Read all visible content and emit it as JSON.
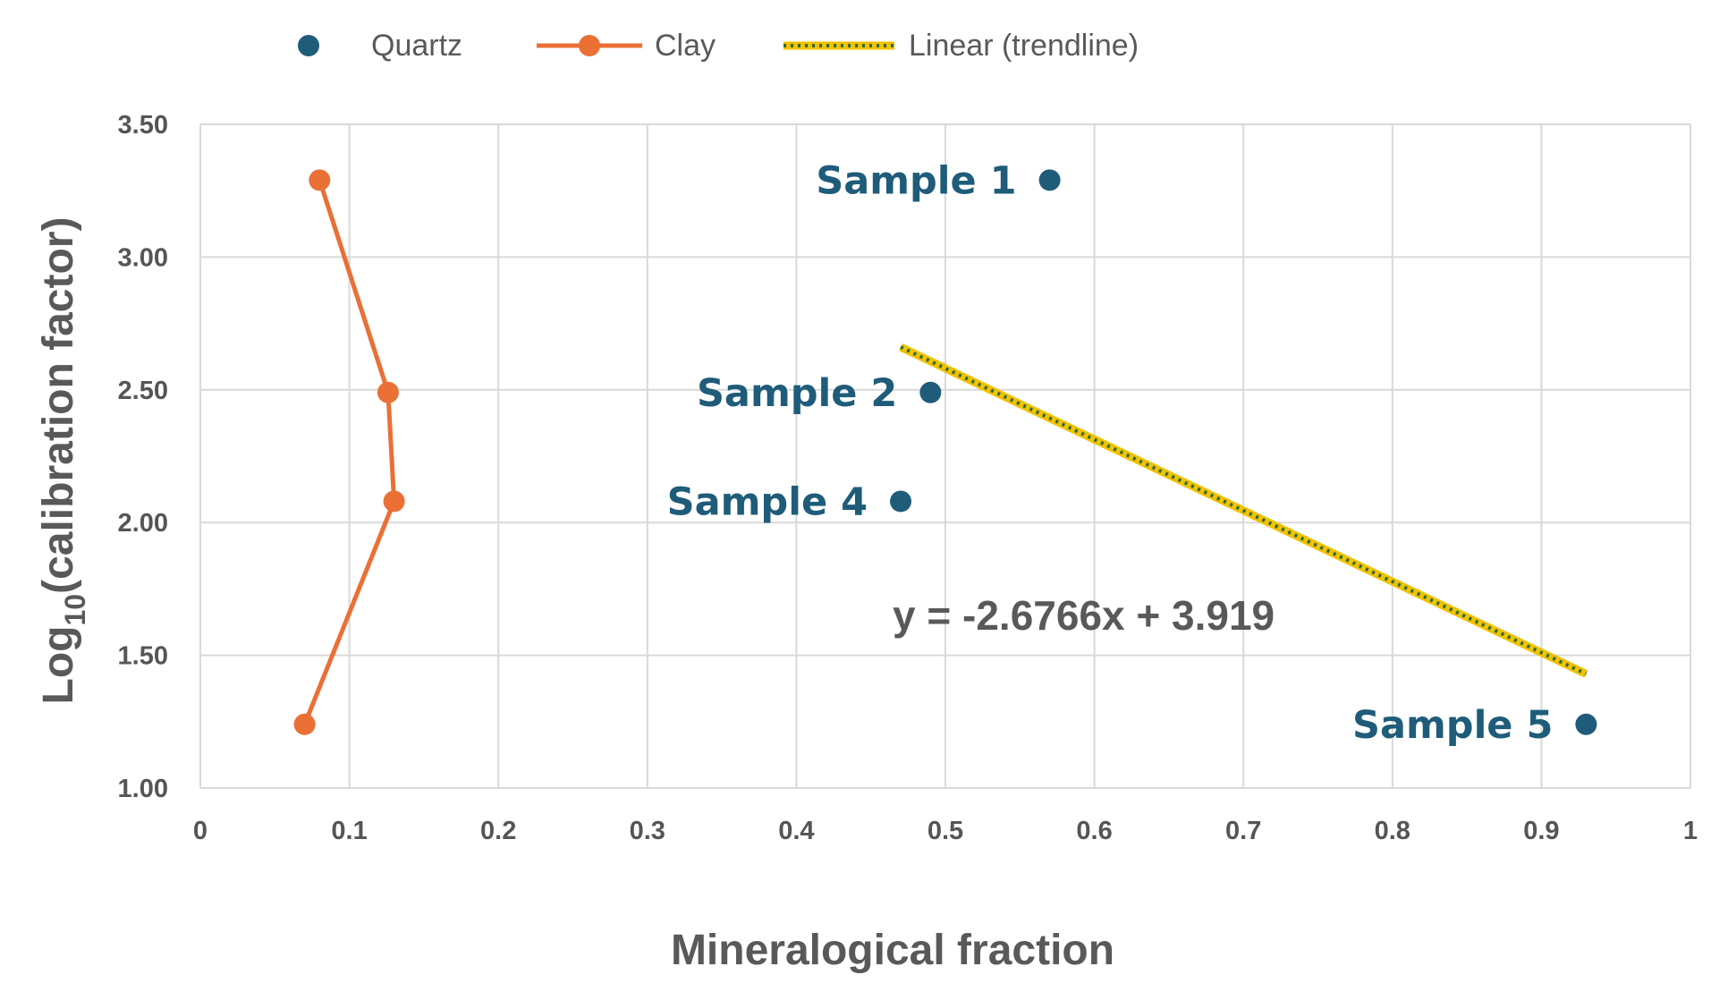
{
  "chart_data": {
    "type": "scatter",
    "xlabel": "Mineralogical fraction",
    "ylabel_main": "Log",
    "ylabel_sub": "10",
    "ylabel_rest": "(calibration factor)",
    "xlim": [
      0,
      1
    ],
    "ylim": [
      1.0,
      3.5
    ],
    "x_ticks": [
      "0",
      "0.1",
      "0.2",
      "0.3",
      "0.4",
      "0.5",
      "0.6",
      "0.7",
      "0.8",
      "0.9",
      "1"
    ],
    "x_tick_values": [
      0,
      0.1,
      0.2,
      0.3,
      0.4,
      0.5,
      0.6,
      0.7,
      0.8,
      0.9,
      1
    ],
    "y_ticks": [
      "1.00",
      "1.50",
      "2.00",
      "2.50",
      "3.00",
      "3.50"
    ],
    "y_tick_values": [
      1.0,
      1.5,
      2.0,
      2.5,
      3.0,
      3.5
    ],
    "grid": true,
    "legend_position": "top-left",
    "series": [
      {
        "name": "Quartz",
        "kind": "markers",
        "color": "#1f5c7a",
        "points": [
          {
            "x": 0.57,
            "y": 3.29,
            "label": "Sample 1"
          },
          {
            "x": 0.49,
            "y": 2.49,
            "label": "Sample 2"
          },
          {
            "x": 0.47,
            "y": 2.08,
            "label": "Sample 4"
          },
          {
            "x": 0.93,
            "y": 1.24,
            "label": "Sample 5"
          }
        ]
      },
      {
        "name": "Clay",
        "kind": "line-markers",
        "color": "#ea7035",
        "points": [
          {
            "x": 0.08,
            "y": 3.29
          },
          {
            "x": 0.126,
            "y": 2.49
          },
          {
            "x": 0.13,
            "y": 2.08
          },
          {
            "x": 0.07,
            "y": 1.24
          }
        ]
      }
    ],
    "trendline": {
      "name": "Linear (trendline)",
      "slope": -2.6766,
      "intercept": 3.919,
      "x_start": 0.47,
      "x_end": 0.93,
      "equation": "y = -2.6766x + 3.919",
      "color": "#f2c200",
      "dot_color": "#2e6b3a"
    }
  }
}
